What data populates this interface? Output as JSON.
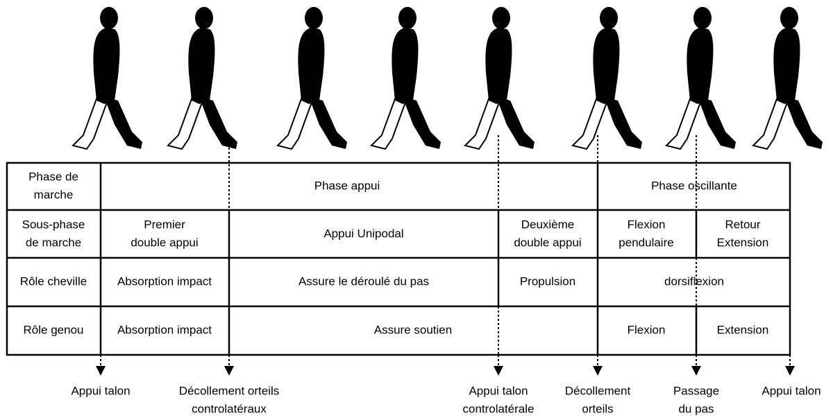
{
  "table": {
    "rows": [
      [
        [
          "Phase de",
          "marche"
        ],
        [
          "Phase appui"
        ],
        [
          "Phase oscillante"
        ]
      ],
      [
        [
          "Sous-phase",
          "de marche"
        ],
        [
          "Premier",
          "double appui"
        ],
        [
          "Appui Unipodal"
        ],
        [
          "Deuxième",
          "double appui"
        ],
        [
          "Flexion",
          "pendulaire"
        ],
        [
          "Retour",
          "Extension"
        ]
      ],
      [
        [
          "Rôle cheville"
        ],
        [
          "Absorption impact"
        ],
        [
          "Assure le déroulé du pas"
        ],
        [
          "Propulsion"
        ],
        [
          "dorsiflexion"
        ]
      ],
      [
        [
          "Rôle genou"
        ],
        [
          "Absorption impact"
        ],
        [
          "Assure soutien"
        ],
        [
          "Flexion"
        ],
        [
          "Extension"
        ]
      ]
    ]
  },
  "events": [
    [
      "Appui talon"
    ],
    [
      "Décollement orteils",
      "controlatéraux"
    ],
    [
      "Appui talon",
      "controlatérale"
    ],
    [
      "Décollement",
      "orteils"
    ],
    [
      "Passage",
      "du pas"
    ],
    [
      "Appui talon"
    ]
  ]
}
